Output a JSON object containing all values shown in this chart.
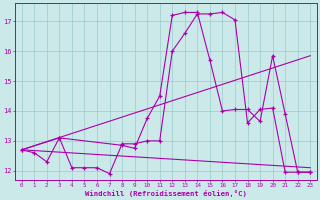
{
  "xlabel": "Windchill (Refroidissement éolien,°C)",
  "bg_color": "#cce9e9",
  "line_color": "#aa00aa",
  "grid_color": "#99cccc",
  "xlim": [
    -0.5,
    23.5
  ],
  "ylim": [
    11.7,
    17.6
  ],
  "yticks": [
    12,
    13,
    14,
    15,
    16,
    17
  ],
  "xticks": [
    0,
    1,
    2,
    3,
    4,
    5,
    6,
    7,
    8,
    9,
    10,
    11,
    12,
    13,
    14,
    15,
    16,
    17,
    18,
    19,
    20,
    21,
    22,
    23
  ],
  "line1_x": [
    0,
    1,
    2,
    3,
    4,
    5,
    6,
    7,
    8,
    9,
    10,
    11,
    12,
    13,
    14,
    15,
    16,
    17,
    18,
    19,
    20,
    21,
    22,
    23
  ],
  "line1_y": [
    12.7,
    12.6,
    12.3,
    13.1,
    12.1,
    12.1,
    12.1,
    11.9,
    12.9,
    12.9,
    13.0,
    13.0,
    16.0,
    16.6,
    17.25,
    17.25,
    17.3,
    17.05,
    13.6,
    14.05,
    14.1,
    11.95,
    11.95,
    11.95
  ],
  "line2_x": [
    0,
    3,
    8,
    9,
    10,
    11,
    12,
    13,
    14,
    15,
    16,
    17,
    18,
    19,
    20,
    21,
    22,
    23
  ],
  "line2_y": [
    12.7,
    13.1,
    12.85,
    12.75,
    13.75,
    14.5,
    17.2,
    17.3,
    17.3,
    15.7,
    14.0,
    14.05,
    14.05,
    13.65,
    15.85,
    13.9,
    11.95,
    11.95
  ],
  "line3_x": [
    0,
    23
  ],
  "line3_y": [
    12.7,
    15.85
  ],
  "line4_x": [
    0,
    23
  ],
  "line4_y": [
    12.7,
    12.1
  ]
}
